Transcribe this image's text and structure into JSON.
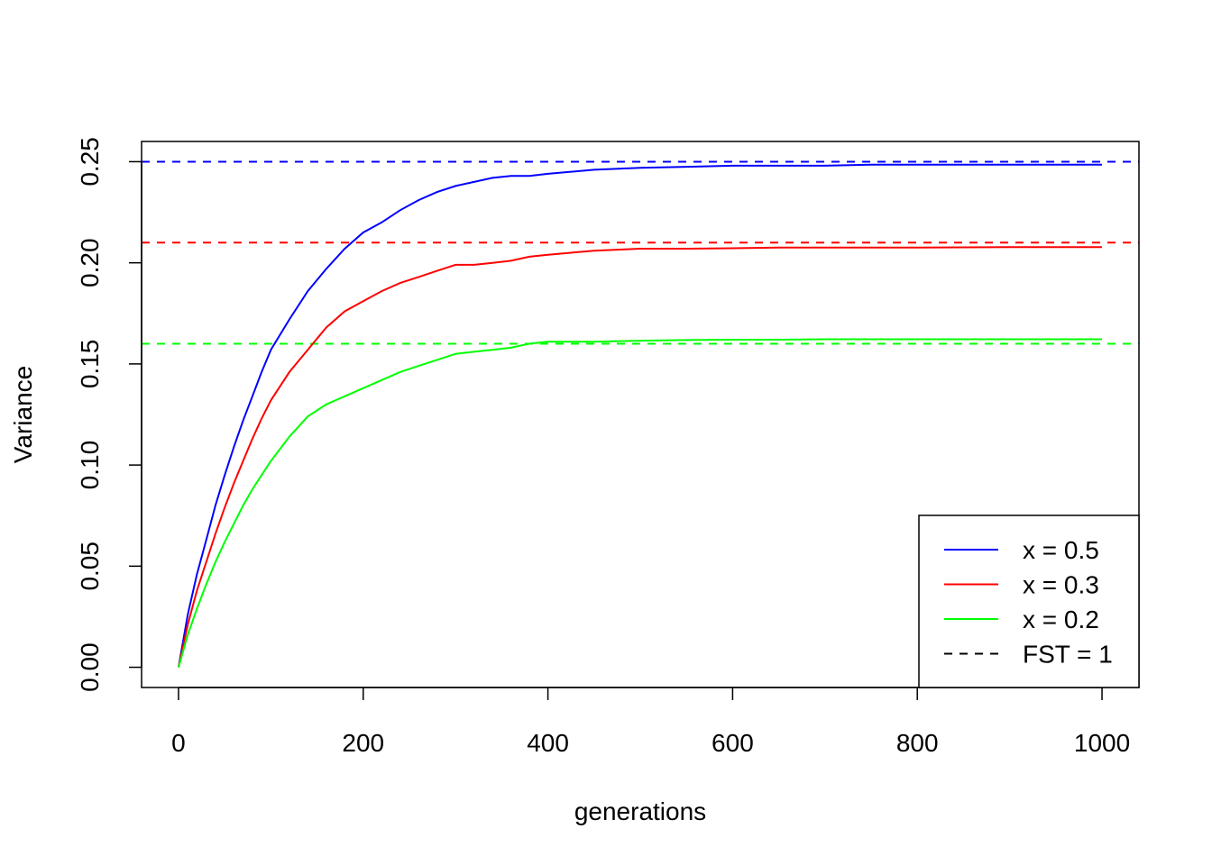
{
  "chart_data": {
    "type": "line",
    "title": "",
    "xlabel": "generations",
    "ylabel": "Variance",
    "xlim": [
      -40,
      1040
    ],
    "ylim": [
      -0.01,
      0.26
    ],
    "x_ticks": [
      "0",
      "200",
      "400",
      "600",
      "800",
      "1000"
    ],
    "y_ticks": [
      "0.00",
      "0.05",
      "0.10",
      "0.15",
      "0.20",
      "0.25"
    ],
    "grid": false,
    "legend_position": "bottom-right",
    "legend": [
      {
        "label": "x = 0.5",
        "color": "#0000ff",
        "dash": false
      },
      {
        "label": "x = 0.3",
        "color": "#ff0000",
        "dash": false
      },
      {
        "label": "x = 0.2",
        "color": "#00ff00",
        "dash": false
      },
      {
        "label": "FST = 1",
        "color": "#000000",
        "dash": true
      }
    ],
    "series": [
      {
        "color": "#0000ff",
        "x": [
          0,
          10,
          20,
          30,
          40,
          50,
          60,
          70,
          80,
          90,
          100,
          120,
          140,
          160,
          180,
          200,
          220,
          240,
          260,
          280,
          300,
          320,
          340,
          360,
          380,
          400,
          450,
          500,
          550,
          600,
          650,
          700,
          750,
          800,
          900,
          1000
        ],
        "y": [
          0.0,
          0.026,
          0.046,
          0.063,
          0.08,
          0.095,
          0.109,
          0.122,
          0.134,
          0.146,
          0.157,
          0.172,
          0.186,
          0.197,
          0.207,
          0.215,
          0.22,
          0.226,
          0.231,
          0.235,
          0.238,
          0.24,
          0.242,
          0.243,
          0.243,
          0.244,
          0.246,
          0.247,
          0.2475,
          0.248,
          0.248,
          0.248,
          0.2485,
          0.2485,
          0.2485,
          0.2485
        ]
      },
      {
        "color": "#ff0000",
        "x": [
          0,
          10,
          20,
          30,
          40,
          50,
          60,
          70,
          80,
          90,
          100,
          120,
          140,
          160,
          180,
          200,
          220,
          240,
          260,
          280,
          300,
          320,
          340,
          360,
          380,
          400,
          450,
          500,
          550,
          600,
          650,
          700,
          750,
          800,
          900,
          1000
        ],
        "y": [
          0.0,
          0.021,
          0.038,
          0.052,
          0.066,
          0.079,
          0.091,
          0.102,
          0.113,
          0.123,
          0.132,
          0.146,
          0.157,
          0.168,
          0.176,
          0.181,
          0.186,
          0.19,
          0.193,
          0.196,
          0.199,
          0.199,
          0.2,
          0.201,
          0.203,
          0.204,
          0.206,
          0.207,
          0.207,
          0.2072,
          0.2075,
          0.2075,
          0.2075,
          0.2075,
          0.2078,
          0.2078
        ]
      },
      {
        "color": "#00ff00",
        "x": [
          0,
          10,
          20,
          30,
          40,
          50,
          60,
          70,
          80,
          90,
          100,
          120,
          140,
          160,
          180,
          200,
          220,
          240,
          260,
          280,
          300,
          320,
          340,
          360,
          380,
          400,
          450,
          500,
          550,
          600,
          650,
          700,
          750,
          800,
          900,
          1000
        ],
        "y": [
          0.0,
          0.016,
          0.029,
          0.041,
          0.052,
          0.062,
          0.071,
          0.08,
          0.088,
          0.095,
          0.102,
          0.114,
          0.124,
          0.13,
          0.134,
          0.138,
          0.142,
          0.146,
          0.149,
          0.152,
          0.155,
          0.156,
          0.157,
          0.158,
          0.16,
          0.161,
          0.161,
          0.1615,
          0.1618,
          0.162,
          0.162,
          0.1622,
          0.1622,
          0.1622,
          0.1622,
          0.1622
        ]
      }
    ],
    "hlines": [
      {
        "y": 0.25,
        "color": "#0000ff",
        "dash": true
      },
      {
        "y": 0.21,
        "color": "#ff0000",
        "dash": true
      },
      {
        "y": 0.16,
        "color": "#00ff00",
        "dash": true
      }
    ]
  }
}
